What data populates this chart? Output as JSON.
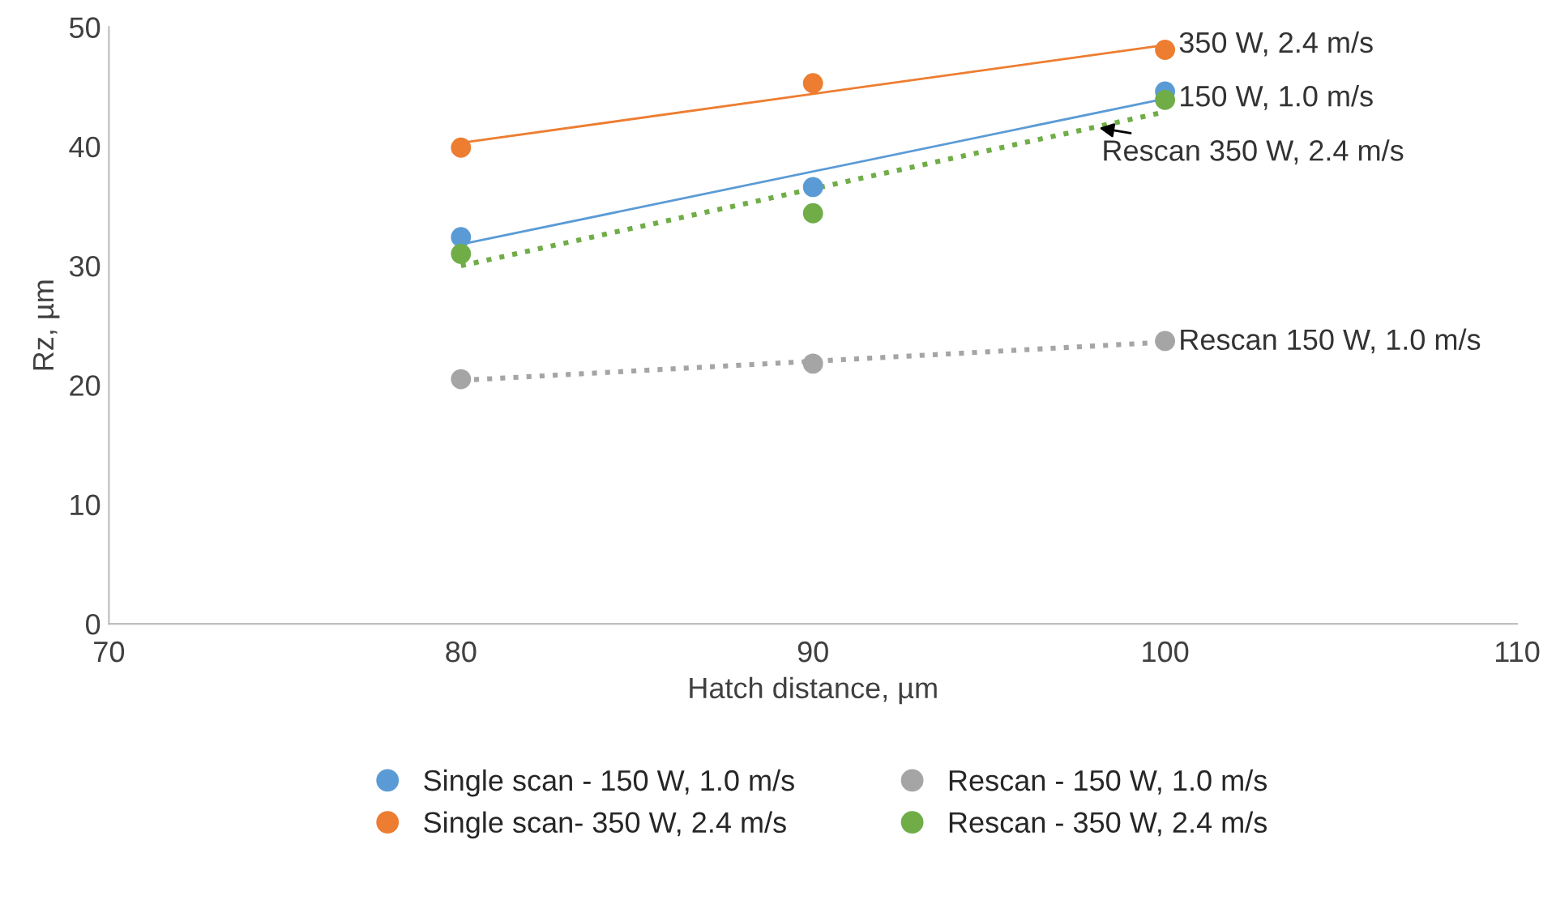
{
  "chart_data": {
    "type": "scatter",
    "xlabel": "Hatch distance, µm",
    "ylabel": "Rz, µm",
    "xlim": [
      70,
      110
    ],
    "xticks": [
      70,
      80,
      90,
      100,
      110
    ],
    "ylim": [
      0,
      50
    ],
    "yticks": [
      0,
      10,
      20,
      30,
      40,
      50
    ],
    "grid": false,
    "legend": "bottom",
    "series": [
      {
        "name": "Single scan - 150 W, 1.0 m/s",
        "marker": "circle",
        "color": "#5b9bd5",
        "x": [
          80,
          90,
          100
        ],
        "values": [
          32.4,
          36.6,
          44.6
        ]
      },
      {
        "name": "Single scan- 350 W, 2.4 m/s",
        "marker": "circle",
        "color": "#ed7d31",
        "x": [
          80,
          90,
          100
        ],
        "values": [
          39.9,
          45.3,
          48.1
        ]
      },
      {
        "name": "Rescan - 150 W, 1.0 m/s",
        "marker": "circle",
        "color": "#a5a5a5",
        "x": [
          80,
          90,
          100
        ],
        "values": [
          20.5,
          21.8,
          23.7
        ]
      },
      {
        "name": "Rescan - 350 W, 2.4 m/s",
        "marker": "circle",
        "color": "#70ad47",
        "x": [
          80,
          90,
          100
        ],
        "values": [
          31.0,
          34.4,
          43.9
        ]
      },
      {
        "name": "150 W, 1.0 m/s",
        "type": "line",
        "color": "#5b9bd5",
        "line_style": "solid",
        "x": [
          80,
          100
        ],
        "values": [
          31.8,
          44.0
        ]
      },
      {
        "name": "350 W, 2.4 m/s",
        "type": "line",
        "color": "#ed7d31",
        "line_style": "solid",
        "x": [
          80,
          100
        ],
        "values": [
          40.3,
          48.5
        ]
      },
      {
        "name": "Rescan 150 W, 1.0 m/s",
        "type": "line",
        "color": "#a5a5a5",
        "line_style": "dotted",
        "x": [
          80,
          100
        ],
        "values": [
          20.4,
          23.6
        ]
      },
      {
        "name": "Rescan 350 W, 2.4 m/s",
        "type": "line",
        "color": "#70ad47",
        "line_style": "dotted",
        "x": [
          80,
          100
        ],
        "values": [
          30.0,
          42.9
        ]
      }
    ]
  }
}
